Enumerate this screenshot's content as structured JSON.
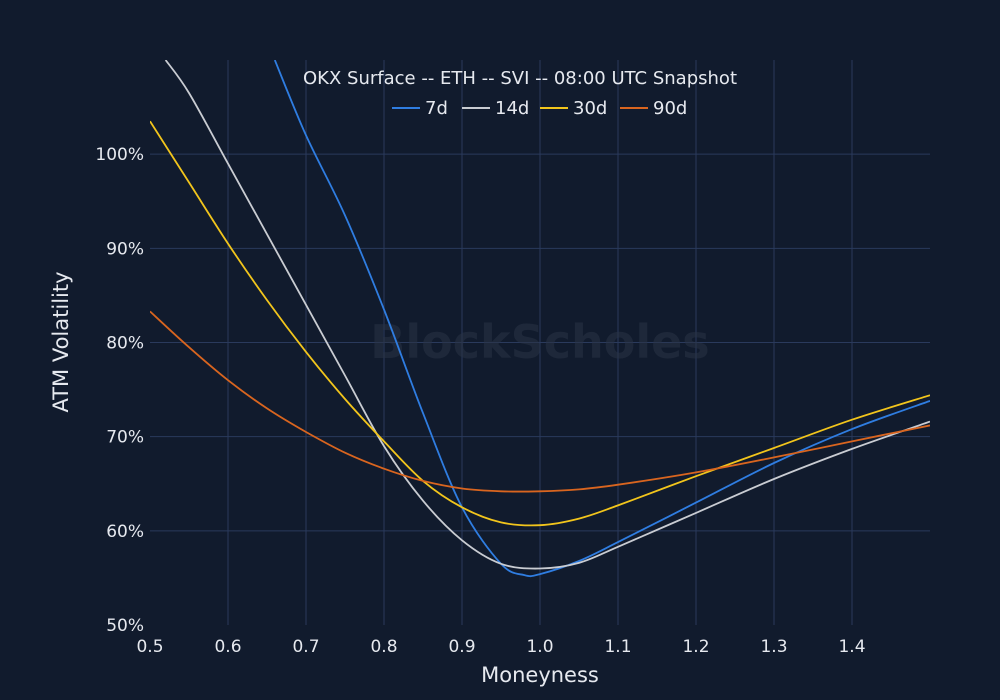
{
  "chart_data": {
    "type": "line",
    "title": "OKX Surface -- ETH -- SVI -- 08:00 UTC Snapshot",
    "xlabel": "Moneyness",
    "ylabel": "ATM Volatility",
    "watermark": "BlockScholes",
    "xlim": [
      0.5,
      1.5
    ],
    "ylim": [
      50,
      110
    ],
    "x_ticks": [
      0.5,
      0.6,
      0.7,
      0.8,
      0.9,
      1.0,
      1.1,
      1.2,
      1.3,
      1.4
    ],
    "x_tick_labels": [
      "0.5",
      "0.6",
      "0.7",
      "0.8",
      "0.9",
      "1.0",
      "1.1",
      "1.2",
      "1.3",
      "1.4"
    ],
    "y_ticks": [
      50,
      60,
      70,
      80,
      90,
      100
    ],
    "y_tick_labels": [
      "50%",
      "60%",
      "70%",
      "80%",
      "90%",
      "100%"
    ],
    "grid": true,
    "legend_position": "top-center",
    "series": [
      {
        "name": "7d",
        "color": "#2f7de1",
        "points": [
          [
            0.66,
            110
          ],
          [
            0.7,
            102
          ],
          [
            0.75,
            93.5
          ],
          [
            0.8,
            83.5
          ],
          [
            0.85,
            72.5
          ],
          [
            0.9,
            62.5
          ],
          [
            0.95,
            56.5
          ],
          [
            0.98,
            55.3
          ],
          [
            1.0,
            55.4
          ],
          [
            1.05,
            56.8
          ],
          [
            1.1,
            58.8
          ],
          [
            1.2,
            63.0
          ],
          [
            1.3,
            67.2
          ],
          [
            1.4,
            70.8
          ],
          [
            1.5,
            73.8
          ]
        ]
      },
      {
        "name": "14d",
        "color": "#c9ccd2",
        "points": [
          [
            0.52,
            110
          ],
          [
            0.55,
            106.5
          ],
          [
            0.6,
            99
          ],
          [
            0.65,
            91.5
          ],
          [
            0.7,
            84
          ],
          [
            0.75,
            76.5
          ],
          [
            0.8,
            69
          ],
          [
            0.85,
            63.2
          ],
          [
            0.9,
            59
          ],
          [
            0.95,
            56.5
          ],
          [
            1.0,
            56.0
          ],
          [
            1.05,
            56.6
          ],
          [
            1.1,
            58.3
          ],
          [
            1.2,
            61.9
          ],
          [
            1.3,
            65.5
          ],
          [
            1.4,
            68.7
          ],
          [
            1.5,
            71.6
          ]
        ]
      },
      {
        "name": "30d",
        "color": "#f2c51c",
        "points": [
          [
            0.5,
            103.5
          ],
          [
            0.55,
            97
          ],
          [
            0.6,
            90.5
          ],
          [
            0.65,
            84.5
          ],
          [
            0.7,
            79
          ],
          [
            0.75,
            74
          ],
          [
            0.8,
            69.5
          ],
          [
            0.85,
            65.3
          ],
          [
            0.9,
            62.5
          ],
          [
            0.95,
            60.9
          ],
          [
            1.0,
            60.6
          ],
          [
            1.05,
            61.3
          ],
          [
            1.1,
            62.7
          ],
          [
            1.2,
            65.8
          ],
          [
            1.3,
            68.8
          ],
          [
            1.4,
            71.8
          ],
          [
            1.5,
            74.4
          ]
        ]
      },
      {
        "name": "90d",
        "color": "#d9651f",
        "points": [
          [
            0.5,
            83.3
          ],
          [
            0.55,
            79.5
          ],
          [
            0.6,
            76
          ],
          [
            0.65,
            73
          ],
          [
            0.7,
            70.5
          ],
          [
            0.75,
            68.3
          ],
          [
            0.8,
            66.6
          ],
          [
            0.85,
            65.3
          ],
          [
            0.9,
            64.5
          ],
          [
            0.95,
            64.2
          ],
          [
            1.0,
            64.2
          ],
          [
            1.05,
            64.4
          ],
          [
            1.1,
            64.9
          ],
          [
            1.2,
            66.2
          ],
          [
            1.3,
            67.8
          ],
          [
            1.4,
            69.5
          ],
          [
            1.5,
            71.2
          ]
        ]
      }
    ]
  }
}
